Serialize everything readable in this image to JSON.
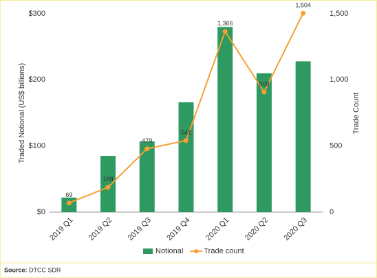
{
  "chart_data": {
    "type": "bar-line",
    "categories": [
      "2019 Q1",
      "2019 Q2",
      "2019 Q3",
      "2019 Q4",
      "2020 Q1",
      "2020 Q2",
      "2020 Q3"
    ],
    "ylabel": "Traded Notional (US$ billions)",
    "y2label": "Trade Count",
    "ylim": [
      0,
      300
    ],
    "yticks": [
      {
        "value": 0,
        "label": "$0"
      },
      {
        "value": 100,
        "label": "$100"
      },
      {
        "value": 200,
        "label": "$200"
      },
      {
        "value": 300,
        "label": "$300"
      }
    ],
    "y2lim": [
      0,
      1500
    ],
    "y2ticks": [
      0,
      500,
      {
        "value": 1000,
        "label": "1,000"
      },
      {
        "value": 1500,
        "label": "1,500"
      }
    ],
    "grid": false,
    "series": [
      {
        "name": "Notional",
        "type": "bar",
        "color": "#2e9a62",
        "values": [
          22,
          85,
          107,
          166,
          280,
          210,
          228
        ]
      },
      {
        "name": "Trade count",
        "type": "line",
        "axis": "y2",
        "color": "#f5a031",
        "values": [
          69,
          188,
          479,
          541,
          1366,
          908,
          1504
        ],
        "value_labels": [
          "69",
          "188",
          "479",
          "541",
          "1,366",
          "908",
          "1,504"
        ]
      }
    ],
    "legend": "bottom",
    "source_label": "Source:",
    "source": "DTCC SDR"
  }
}
